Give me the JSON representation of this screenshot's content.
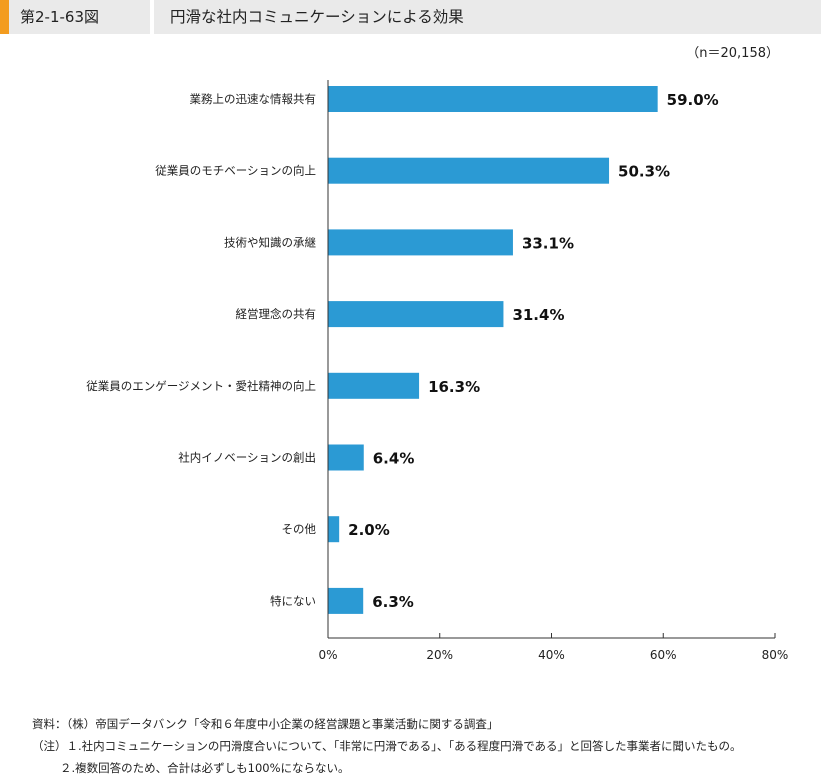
{
  "header": {
    "figure_no": "第2-1-63図",
    "title": "円滑な社内コミュニケーションによる効果"
  },
  "sample_note": "（n＝20,158）",
  "chart_data": {
    "type": "bar",
    "orientation": "horizontal",
    "categories": [
      "業務上の迅速な情報共有",
      "従業員のモチベーションの向上",
      "技術や知識の承継",
      "経営理念の共有",
      "従業員のエンゲージメント・愛社精神の向上",
      "社内イノベーションの創出",
      "その他",
      "特にない"
    ],
    "values": [
      59.0,
      50.3,
      33.1,
      31.4,
      16.3,
      6.4,
      2.0,
      6.3
    ],
    "value_labels": [
      "59.0%",
      "50.3%",
      "33.1%",
      "31.4%",
      "16.3%",
      "6.4%",
      "2.0%",
      "6.3%"
    ],
    "xlim": [
      0,
      80
    ],
    "x_ticks": [
      0,
      20,
      40,
      60,
      80
    ],
    "x_tick_labels": [
      "0%",
      "20%",
      "40%",
      "60%",
      "80%"
    ],
    "bar_color": "#2b9ad4",
    "grid": false
  },
  "notes": {
    "source": "資料：（株）帝国データバンク「令和６年度中小企業の経営課題と事業活動に関する調査」",
    "note1": "（注）１.社内コミュニケーションの円滑度合いについて、「非常に円滑である」、「ある程度円滑である」と回答した事業者に聞いたもの。",
    "note2": "２.複数回答のため、合計は必ずしも100%にならない。"
  }
}
